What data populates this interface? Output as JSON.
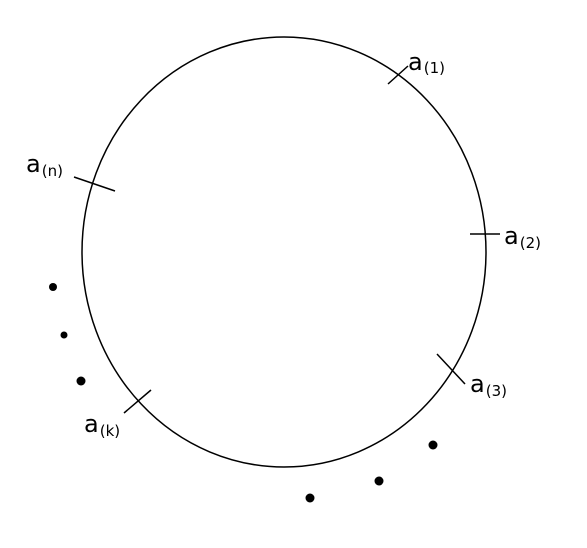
{
  "diagram": {
    "stroke_color": "#000000",
    "background_color": "#ffffff",
    "marks": [
      {
        "id": "a1",
        "base": "a",
        "sub": "(1)"
      },
      {
        "id": "a2",
        "base": "a",
        "sub": "(2)"
      },
      {
        "id": "a3",
        "base": "a",
        "sub": "(3)"
      },
      {
        "id": "ak",
        "base": "a",
        "sub": "(k)"
      },
      {
        "id": "an",
        "base": "a",
        "sub": "(n)"
      }
    ],
    "ellipsis_groups": [
      {
        "id": "left-ellipsis",
        "count": 3
      },
      {
        "id": "bottom-ellipsis",
        "count": 3
      }
    ]
  }
}
